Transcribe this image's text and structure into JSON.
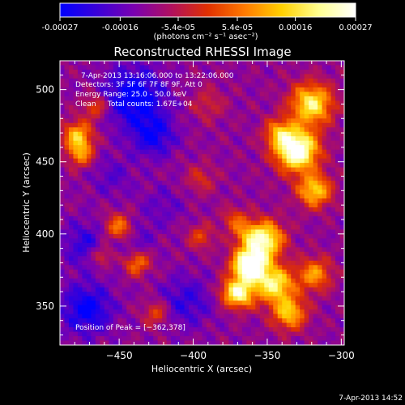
{
  "colorbar": {
    "ticks": [
      "-0.00027",
      "-0.00016",
      "-5.4e-05",
      "5.4e-05",
      "0.00016",
      "0.00027"
    ],
    "tick_values": [
      -0.00027,
      -0.00016,
      -5.4e-05,
      5.4e-05,
      0.00016,
      0.00027
    ],
    "range": [
      -0.00027,
      0.00027
    ],
    "unit_label": "(photons cm⁻² s⁻¹ asec⁻²)",
    "colors": [
      "#0000ff",
      "#3a00d8",
      "#7a00b0",
      "#b01060",
      "#e03000",
      "#ff7a00",
      "#ffd000",
      "#ffff90",
      "#ffffff"
    ]
  },
  "chart_data": {
    "type": "heatmap",
    "title": "Reconstructed RHESSI Image",
    "xlabel": "Heliocentric X (arcsec)",
    "ylabel": "Heliocentric Y (arcsec)",
    "xlim": [
      -490,
      -298
    ],
    "ylim": [
      323,
      520
    ],
    "xticks": [
      -450,
      -400,
      -350,
      -300
    ],
    "yticks": [
      350,
      400,
      450,
      500
    ],
    "xtick_labels": [
      "−450",
      "−400",
      "−350",
      "−300"
    ],
    "ytick_labels": [
      "350",
      "400",
      "450",
      "500"
    ],
    "annotations": [
      "7-Apr-2013 13:16:06.000 to 13:22:06.000",
      "Detectors: 3F 5F 6F 7F 8F 9F, Att 0",
      "Energy Range: 25.0 - 50.0 keV",
      "Clean     Total counts: 1.67E+04"
    ],
    "peak_label": "Position of Peak = [−362,378]",
    "peak": [
      -362,
      378
    ],
    "background_level": -0.00011,
    "blobs": [
      {
        "x": -440,
        "y": 495,
        "amp": -0.00018,
        "s": 14
      },
      {
        "x": -427,
        "y": 468,
        "amp": -0.00014,
        "s": 10
      },
      {
        "x": -455,
        "y": 440,
        "amp": -6e-05,
        "s": 10
      },
      {
        "x": -473,
        "y": 393,
        "amp": -0.0001,
        "s": 11
      },
      {
        "x": -442,
        "y": 398,
        "amp": -8e-05,
        "s": 10
      },
      {
        "x": -405,
        "y": 353,
        "amp": -0.0001,
        "s": 12
      },
      {
        "x": -472,
        "y": 348,
        "amp": -0.00016,
        "s": 12
      },
      {
        "x": -420,
        "y": 420,
        "amp": -5e-05,
        "s": 10
      },
      {
        "x": -478,
        "y": 468,
        "amp": 0.00024,
        "s": 7
      },
      {
        "x": -476,
        "y": 455,
        "amp": 0.00018,
        "s": 6
      },
      {
        "x": -466,
        "y": 488,
        "amp": 0.00014,
        "s": 6
      },
      {
        "x": -450,
        "y": 404,
        "amp": 0.00022,
        "s": 7
      },
      {
        "x": -438,
        "y": 380,
        "amp": 0.00018,
        "s": 6
      },
      {
        "x": -462,
        "y": 385,
        "amp": 0.00014,
        "s": 5
      },
      {
        "x": -425,
        "y": 345,
        "amp": 0.00013,
        "s": 6
      },
      {
        "x": -395,
        "y": 438,
        "amp": 9e-05,
        "s": 7
      },
      {
        "x": -390,
        "y": 490,
        "amp": 8e-05,
        "s": 8
      },
      {
        "x": -395,
        "y": 398,
        "amp": 0.00012,
        "s": 6
      },
      {
        "x": -375,
        "y": 360,
        "amp": 0.00012,
        "s": 6
      },
      {
        "x": -365,
        "y": 400,
        "amp": 0.0001,
        "s": 6
      },
      {
        "x": -320,
        "y": 490,
        "amp": 0.0003,
        "s": 10
      },
      {
        "x": -330,
        "y": 458,
        "amp": 0.00042,
        "s": 10
      },
      {
        "x": -318,
        "y": 430,
        "amp": 0.00026,
        "s": 8
      },
      {
        "x": -342,
        "y": 470,
        "amp": 0.00018,
        "s": 7
      },
      {
        "x": -362,
        "y": 378,
        "amp": 0.00046,
        "s": 8
      },
      {
        "x": -352,
        "y": 396,
        "amp": 0.00034,
        "s": 9
      },
      {
        "x": -345,
        "y": 365,
        "amp": 0.0003,
        "s": 9
      },
      {
        "x": -368,
        "y": 358,
        "amp": 0.00026,
        "s": 7
      },
      {
        "x": -335,
        "y": 345,
        "amp": 0.00024,
        "s": 8
      },
      {
        "x": -318,
        "y": 372,
        "amp": 0.0002,
        "s": 8
      },
      {
        "x": -372,
        "y": 410,
        "amp": 0.00012,
        "s": 6
      }
    ]
  },
  "footer": {
    "timestamp": "7-Apr-2013 14:52"
  }
}
